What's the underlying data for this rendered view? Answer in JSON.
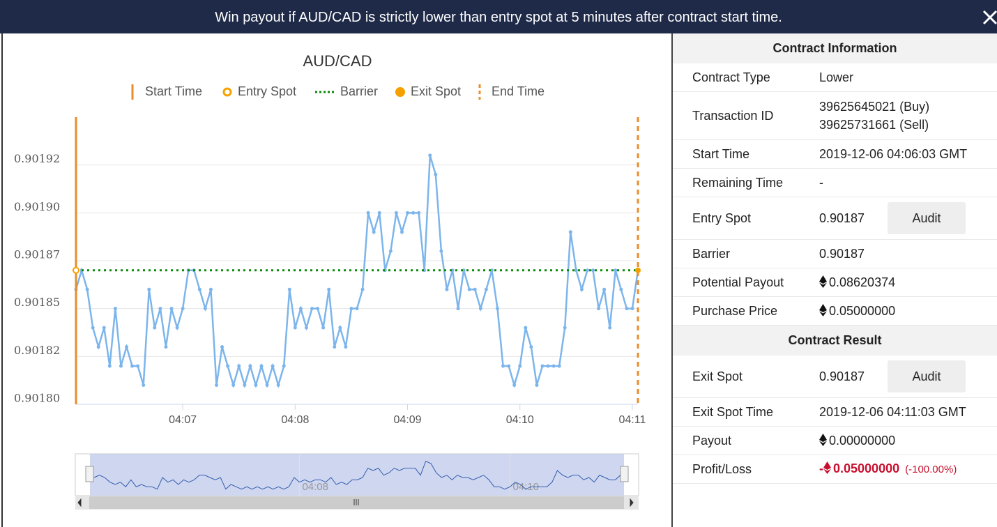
{
  "header": {
    "title": "Win payout if AUD/CAD is strictly lower than entry spot at 5 minutes after contract start time."
  },
  "chart_data": {
    "type": "line",
    "title": "AUD/CAD",
    "legend": [
      "Start Time",
      "Entry Spot",
      "Barrier",
      "Exit Spot",
      "End Time"
    ],
    "start_time": "04:06:03",
    "end_time": "04:11:03",
    "entry_spot": 0.90187,
    "barrier": 0.90187,
    "exit_spot": 0.90187,
    "xlim": [
      "04:06:03",
      "04:11:03"
    ],
    "xticks": [
      {
        "value": "04:07:00",
        "label": "04:07"
      },
      {
        "value": "04:08:00",
        "label": "04:08"
      },
      {
        "value": "04:09:00",
        "label": "04:09"
      },
      {
        "value": "04:10:00",
        "label": "04:10"
      },
      {
        "value": "04:11:00",
        "label": "04:11"
      }
    ],
    "ylim": [
      0.9018,
      0.90195
    ],
    "yticks": [
      {
        "value": 0.9018,
        "label": "0.90180"
      },
      {
        "value": 0.901825,
        "label": "0.90182"
      },
      {
        "value": 0.90185,
        "label": "0.90185"
      },
      {
        "value": 0.901875,
        "label": "0.90187"
      },
      {
        "value": 0.9019,
        "label": "0.90190"
      },
      {
        "value": 0.901925,
        "label": "0.90192"
      }
    ],
    "grid": true,
    "series": [
      {
        "name": "AUD/CAD",
        "color": "#7cb5ec",
        "x": [
          "04:06:03",
          "04:06:06",
          "04:06:09",
          "04:06:12",
          "04:06:15",
          "04:06:18",
          "04:06:21",
          "04:06:24",
          "04:06:27",
          "04:06:30",
          "04:06:33",
          "04:06:36",
          "04:06:39",
          "04:06:42",
          "04:06:45",
          "04:06:48",
          "04:06:51",
          "04:06:54",
          "04:06:57",
          "04:07:00",
          "04:07:03",
          "04:07:06",
          "04:07:09",
          "04:07:12",
          "04:07:15",
          "04:07:18",
          "04:07:21",
          "04:07:24",
          "04:07:27",
          "04:07:30",
          "04:07:33",
          "04:07:36",
          "04:07:39",
          "04:07:42",
          "04:07:45",
          "04:07:48",
          "04:07:51",
          "04:07:54",
          "04:07:57",
          "04:08:00",
          "04:08:03",
          "04:08:06",
          "04:08:09",
          "04:08:12",
          "04:08:15",
          "04:08:18",
          "04:08:21",
          "04:08:24",
          "04:08:27",
          "04:08:30",
          "04:08:33",
          "04:08:36",
          "04:08:39",
          "04:08:42",
          "04:08:45",
          "04:08:48",
          "04:08:51",
          "04:08:54",
          "04:08:57",
          "04:09:00",
          "04:09:03",
          "04:09:06",
          "04:09:09",
          "04:09:12",
          "04:09:15",
          "04:09:18",
          "04:09:21",
          "04:09:24",
          "04:09:27",
          "04:09:30",
          "04:09:33",
          "04:09:36",
          "04:09:39",
          "04:09:42",
          "04:09:45",
          "04:09:48",
          "04:09:51",
          "04:09:54",
          "04:09:57",
          "04:10:00",
          "04:10:03",
          "04:10:06",
          "04:10:09",
          "04:10:12",
          "04:10:15",
          "04:10:18",
          "04:10:21",
          "04:10:24",
          "04:10:27",
          "04:10:30",
          "04:10:33",
          "04:10:36",
          "04:10:39",
          "04:10:42",
          "04:10:45",
          "04:10:48",
          "04:10:51",
          "04:10:54",
          "04:10:57",
          "04:11:00",
          "04:11:03"
        ],
        "values": [
          0.90186,
          0.90187,
          0.90186,
          0.90184,
          0.90183,
          0.90184,
          0.90182,
          0.90185,
          0.90182,
          0.90183,
          0.90182,
          0.90182,
          0.90181,
          0.90186,
          0.90184,
          0.90185,
          0.90183,
          0.90185,
          0.90184,
          0.90185,
          0.90187,
          0.90187,
          0.90186,
          0.90185,
          0.90186,
          0.90181,
          0.90183,
          0.90182,
          0.90181,
          0.90182,
          0.90181,
          0.90182,
          0.90181,
          0.90182,
          0.90181,
          0.90182,
          0.90181,
          0.90182,
          0.90186,
          0.90184,
          0.90185,
          0.90184,
          0.90185,
          0.90185,
          0.90184,
          0.90186,
          0.90183,
          0.90184,
          0.90183,
          0.90185,
          0.90185,
          0.90186,
          0.9019,
          0.90189,
          0.9019,
          0.90187,
          0.90188,
          0.9019,
          0.90189,
          0.9019,
          0.9019,
          0.9019,
          0.90187,
          0.90193,
          0.90192,
          0.90188,
          0.90186,
          0.90187,
          0.90185,
          0.90187,
          0.90186,
          0.90186,
          0.90185,
          0.90186,
          0.90187,
          0.90185,
          0.90182,
          0.90182,
          0.90181,
          0.90182,
          0.90184,
          0.90183,
          0.90181,
          0.90182,
          0.90182,
          0.90182,
          0.90182,
          0.90184,
          0.90189,
          0.90187,
          0.90186,
          0.90187,
          0.90187,
          0.90185,
          0.90186,
          0.90184,
          0.90187,
          0.90186,
          0.90185,
          0.90185,
          0.90187
        ]
      }
    ]
  },
  "contract_info": {
    "title": "Contract Information",
    "rows": [
      {
        "label": "Contract Type",
        "value": "Lower"
      },
      {
        "label": "Transaction ID",
        "value": [
          "39625645021 (Buy)",
          "39625731661 (Sell)"
        ]
      },
      {
        "label": "Start Time",
        "value": "2019-12-06 04:06:03 GMT"
      },
      {
        "label": "Remaining Time",
        "value": "-"
      },
      {
        "label": "Entry Spot",
        "value": "0.90187",
        "button": "Audit"
      },
      {
        "label": "Barrier",
        "value": "0.90187"
      },
      {
        "label": "Potential Payout",
        "value": "0.08620374",
        "currency": true
      },
      {
        "label": "Purchase Price",
        "value": "0.05000000",
        "currency": true
      }
    ]
  },
  "contract_result": {
    "title": "Contract Result",
    "rows": [
      {
        "label": "Exit Spot",
        "value": "0.90187",
        "button": "Audit"
      },
      {
        "label": "Exit Spot Time",
        "value": "2019-12-06 04:11:03 GMT"
      },
      {
        "label": "Payout",
        "value": "0.00000000",
        "currency": true
      },
      {
        "label": "Profit/Loss",
        "sign": "-",
        "value": "0.05000000",
        "percent": "(-100.00%)",
        "currency": true,
        "loss": true
      }
    ]
  }
}
